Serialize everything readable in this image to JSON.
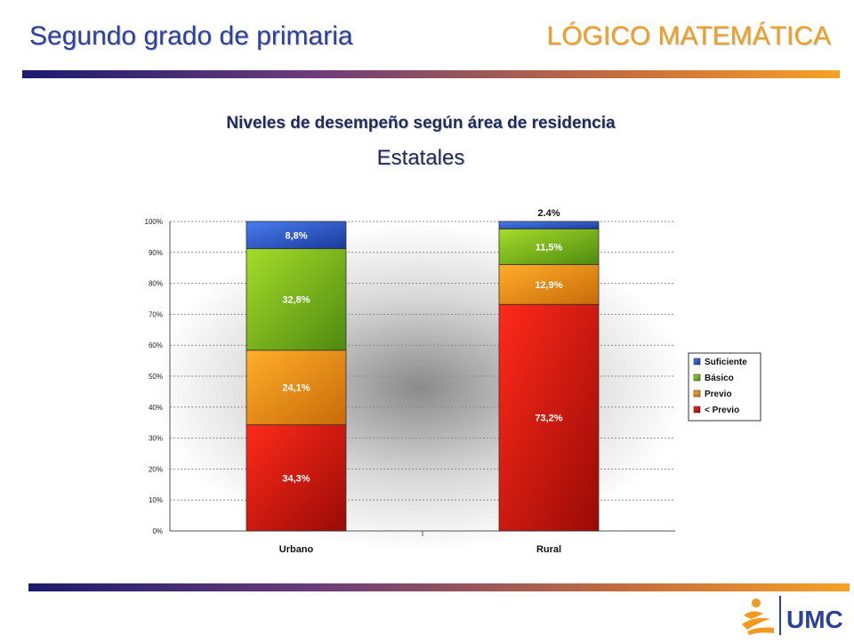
{
  "header": {
    "title": "Segundo grado de primaria",
    "subject": "LÓGICO MATEMÁTICA"
  },
  "colors": {
    "title_blue": "#2a3f9e",
    "subject_orange": "#f0a020",
    "suficiente": "#2f5fd8",
    "basico": "#7fbf1a",
    "previo": "#f09010",
    "menor_previo": "#dd1010"
  },
  "logo": {
    "text": "UMC"
  },
  "chart_data": {
    "type": "bar",
    "stacked": true,
    "title": "Niveles de desempeño según área de residencia",
    "subtitle": "Estatales",
    "categories": [
      "Urbano",
      "Rural"
    ],
    "series": [
      {
        "name": "< Previo",
        "values": [
          34.3,
          73.2
        ],
        "labels": [
          "34,3%",
          "73,2%"
        ]
      },
      {
        "name": "Previo",
        "values": [
          24.1,
          12.9
        ],
        "labels": [
          "24,1%",
          "12,9%"
        ]
      },
      {
        "name": "Básico",
        "values": [
          32.8,
          11.5
        ],
        "labels": [
          "32,8%",
          "11,5%"
        ]
      },
      {
        "name": "Suficiente",
        "values": [
          8.8,
          2.4
        ],
        "labels": [
          "8,8%",
          "2.4%"
        ]
      }
    ],
    "legend_order": [
      "Suficiente",
      "Básico",
      "Previo",
      "< Previo"
    ],
    "legend_position": "right",
    "yticks": [
      "0%",
      "10%",
      "20%",
      "30%",
      "40%",
      "50%",
      "60%",
      "70%",
      "80%",
      "90%",
      "100%"
    ],
    "ylim": [
      0,
      100
    ],
    "grid": true
  }
}
